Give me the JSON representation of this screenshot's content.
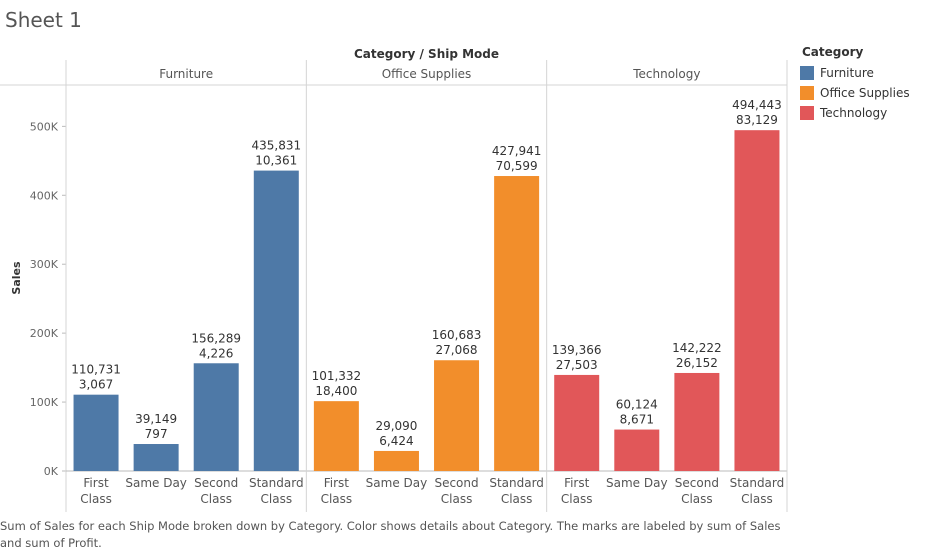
{
  "sheet": {
    "title": "Sheet 1",
    "caption": "Sum of Sales for each Ship Mode broken down by Category.  Color shows details about Category.  The marks are labeled by sum of Sales and sum of Profit."
  },
  "legend": {
    "title": "Category",
    "items": [
      {
        "label": "Furniture",
        "color": "#4e79a7"
      },
      {
        "label": "Office Supplies",
        "color": "#f28e2b"
      },
      {
        "label": "Technology",
        "color": "#e15759"
      }
    ]
  },
  "chart_data": {
    "type": "bar",
    "header_title": "Category / Ship Mode",
    "ylabel": "Sales",
    "ylim": [
      0,
      560000
    ],
    "y_ticks": [
      0,
      100000,
      200000,
      300000,
      400000,
      500000
    ],
    "y_tick_labels": [
      "0K",
      "100K",
      "200K",
      "300K",
      "400K",
      "500K"
    ],
    "grid": false,
    "legend_position": "right",
    "panes": [
      {
        "category": "Furniture",
        "color": "#4e79a7",
        "bars": [
          {
            "ship_mode": [
              "First",
              "Class"
            ],
            "sales": 110731,
            "sales_label": "110,731",
            "profit_label": "3,067"
          },
          {
            "ship_mode": [
              "Same Day"
            ],
            "sales": 39149,
            "sales_label": "39,149",
            "profit_label": "797"
          },
          {
            "ship_mode": [
              "Second",
              "Class"
            ],
            "sales": 156289,
            "sales_label": "156,289",
            "profit_label": "4,226"
          },
          {
            "ship_mode": [
              "Standard",
              "Class"
            ],
            "sales": 435831,
            "sales_label": "435,831",
            "profit_label": "10,361"
          }
        ]
      },
      {
        "category": "Office Supplies",
        "color": "#f28e2b",
        "bars": [
          {
            "ship_mode": [
              "First",
              "Class"
            ],
            "sales": 101332,
            "sales_label": "101,332",
            "profit_label": "18,400"
          },
          {
            "ship_mode": [
              "Same Day"
            ],
            "sales": 29090,
            "sales_label": "29,090",
            "profit_label": "6,424"
          },
          {
            "ship_mode": [
              "Second",
              "Class"
            ],
            "sales": 160683,
            "sales_label": "160,683",
            "profit_label": "27,068"
          },
          {
            "ship_mode": [
              "Standard",
              "Class"
            ],
            "sales": 427941,
            "sales_label": "427,941",
            "profit_label": "70,599"
          }
        ]
      },
      {
        "category": "Technology",
        "color": "#e15759",
        "bars": [
          {
            "ship_mode": [
              "First",
              "Class"
            ],
            "sales": 139366,
            "sales_label": "139,366",
            "profit_label": "27,503"
          },
          {
            "ship_mode": [
              "Same Day"
            ],
            "sales": 60124,
            "sales_label": "60,124",
            "profit_label": "8,671"
          },
          {
            "ship_mode": [
              "Second",
              "Class"
            ],
            "sales": 142222,
            "sales_label": "142,222",
            "profit_label": "26,152"
          },
          {
            "ship_mode": [
              "Standard",
              "Class"
            ],
            "sales": 494443,
            "sales_label": "494,443",
            "profit_label": "83,129"
          }
        ]
      }
    ]
  }
}
